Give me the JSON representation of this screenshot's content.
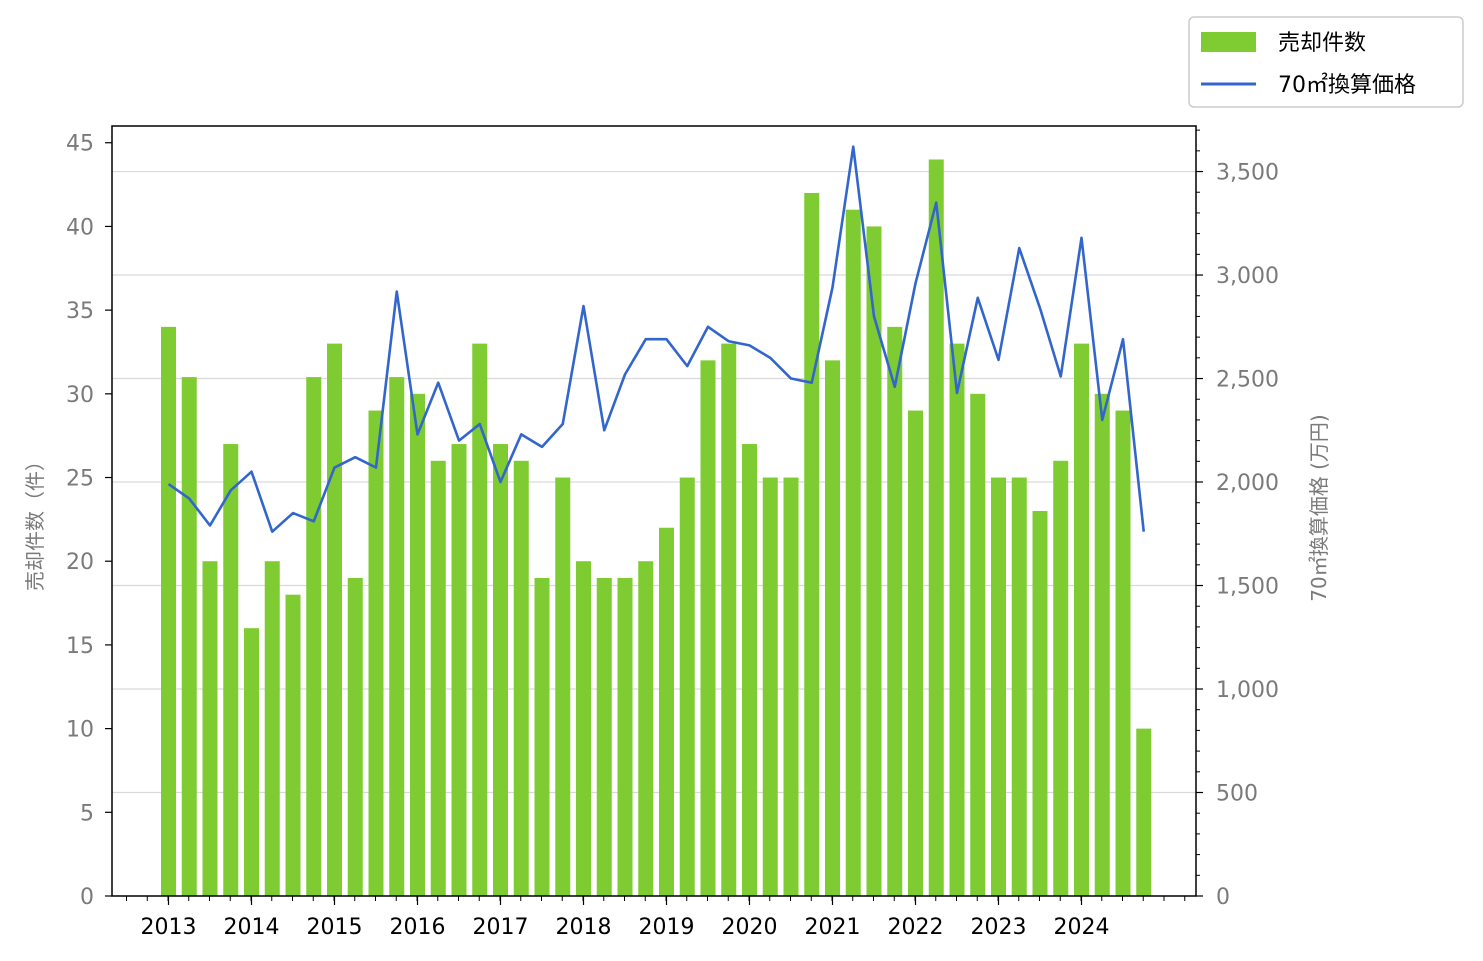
{
  "chart_data": {
    "type": "bar",
    "x_tick_labels": [
      "2013",
      "2014",
      "2015",
      "2016",
      "2017",
      "2018",
      "2019",
      "2020",
      "2021",
      "2022",
      "2023",
      "2024"
    ],
    "ylabel_left": "売却件数（件）",
    "ylabel_right": "70㎡換算価格 (万円)",
    "ylim_left": [
      0,
      46
    ],
    "ylim_right": [
      0,
      3720
    ],
    "left_ticks": [
      0,
      5,
      10,
      15,
      20,
      25,
      30,
      35,
      40,
      45
    ],
    "right_ticks": [
      0,
      500,
      1000,
      1500,
      2000,
      2500,
      3000,
      3500
    ],
    "right_tick_labels": [
      "0",
      "500",
      "1,000",
      "1,500",
      "2,000",
      "2,500",
      "3,000",
      "3,500"
    ],
    "grid": "horizontal, right axis",
    "legend_position": "top-right, outside plot",
    "legend": {
      "bar_label": "売却件数",
      "line_label": "70㎡換算価格"
    },
    "colors": {
      "bars": "#7fcc32",
      "line": "#3366cc",
      "grid": "#d9d9d9"
    },
    "series": [
      {
        "name": "売却件数",
        "type": "bar",
        "axis": "left",
        "values": [
          34,
          31,
          20,
          27,
          16,
          20,
          18,
          31,
          33,
          19,
          29,
          31,
          30,
          26,
          27,
          33,
          27,
          26,
          19,
          25,
          20,
          19,
          19,
          20,
          22,
          25,
          32,
          33,
          27,
          25,
          25,
          42,
          32,
          41,
          40,
          34,
          29,
          44,
          33,
          30,
          25,
          25,
          23,
          26,
          33,
          30,
          29,
          10
        ]
      },
      {
        "name": "70㎡換算価格",
        "type": "line",
        "axis": "right",
        "values": [
          1990,
          1920,
          1790,
          1960,
          2050,
          1760,
          1850,
          1810,
          2070,
          2120,
          2070,
          2920,
          2230,
          2480,
          2200,
          2280,
          2000,
          2230,
          2170,
          2280,
          2850,
          2250,
          2520,
          2690,
          2690,
          2560,
          2750,
          2680,
          2660,
          2600,
          2500,
          2480,
          2940,
          3620,
          2800,
          2460,
          2960,
          3350,
          2430,
          2890,
          2590,
          3130,
          2840,
          2510,
          3180,
          2300,
          2690,
          1760
        ]
      }
    ]
  }
}
